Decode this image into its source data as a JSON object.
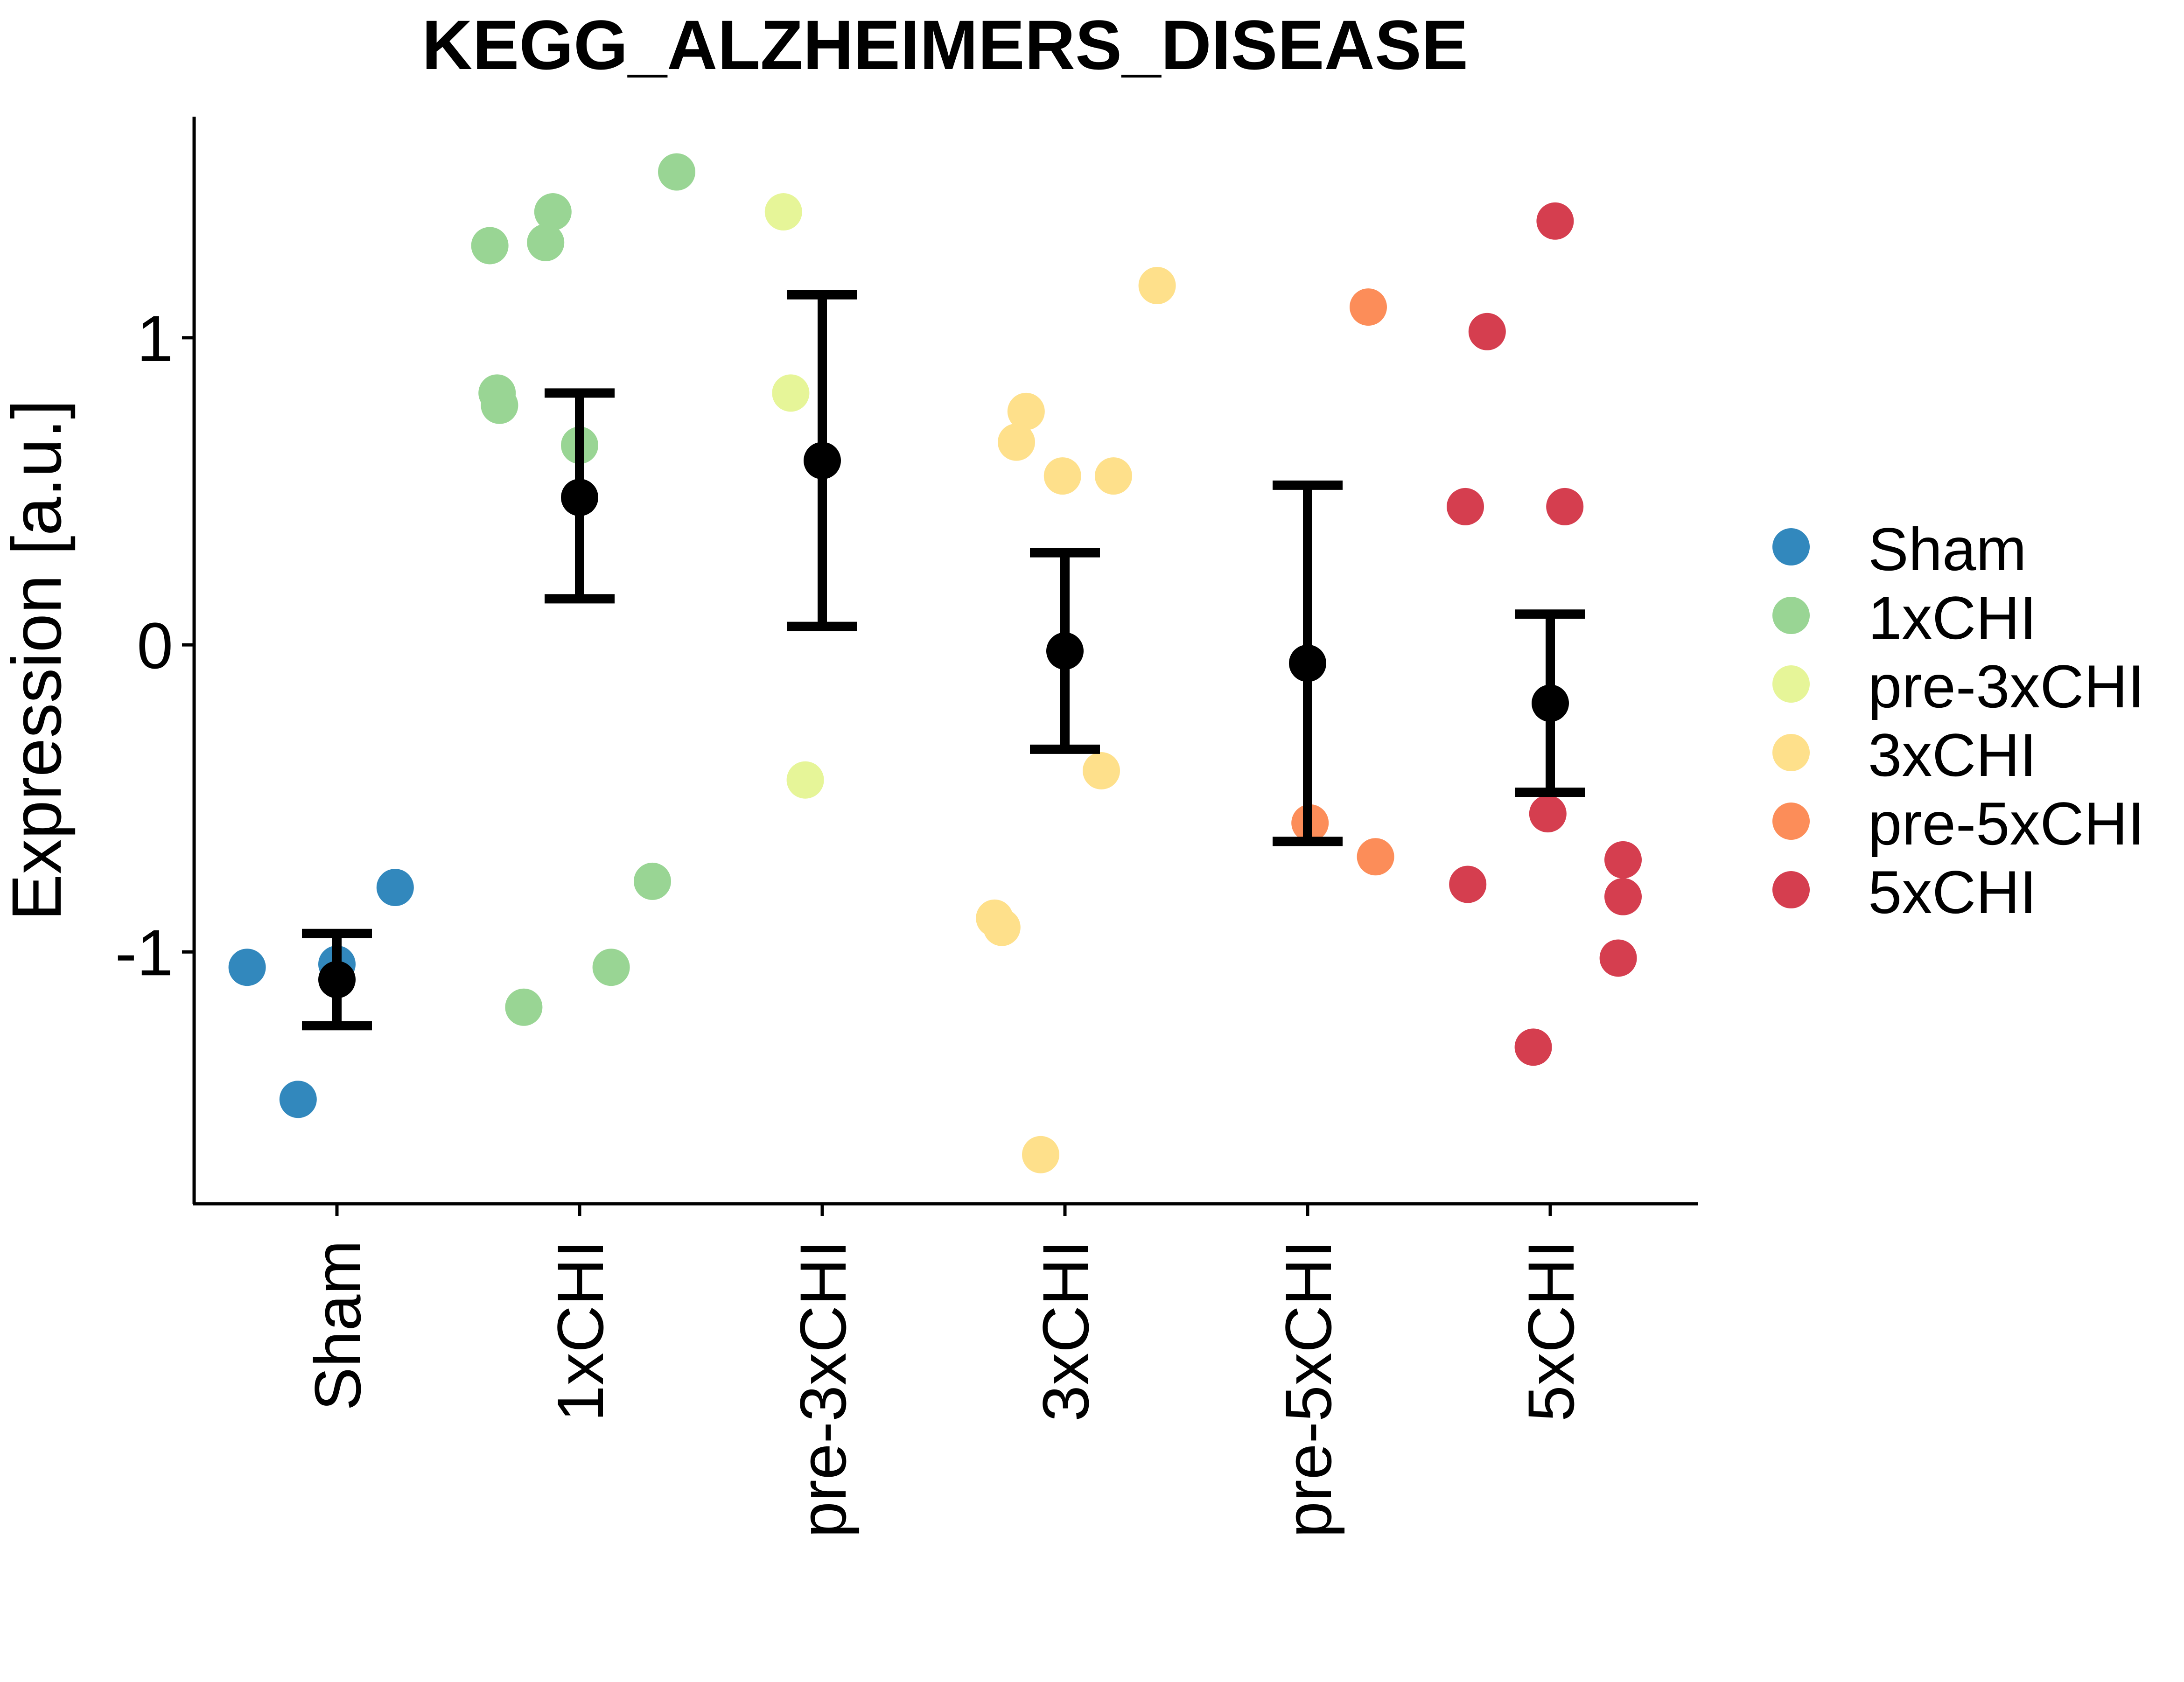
{
  "chart_data": {
    "type": "scatter",
    "title": "KEGG_ALZHEIMERS_DISEASE",
    "xlabel": "",
    "ylabel": "Expression [a.u.]",
    "ylim": [
      -1.82,
      1.72
    ],
    "yticks": [
      -1,
      0,
      1
    ],
    "ytick_labels": [
      "-1",
      "0",
      "1"
    ],
    "categories": [
      "Sham",
      "1xCHI",
      "pre-3xCHI",
      "3xCHI",
      "pre-5xCHI",
      "5xCHI"
    ],
    "grid": false,
    "legend": {
      "placement": "right",
      "entries": [
        "Sham",
        "1xCHI",
        "pre-3xCHI",
        "3xCHI",
        "pre-5xCHI",
        "5xCHI"
      ]
    },
    "colors": {
      "Sham": "#3288bd",
      "1xCHI": "#99d594",
      "pre-3xCHI": "#e6f598",
      "3xCHI": "#fee08b",
      "pre-5xCHI": "#fc8d59",
      "5xCHI": "#d53e4f",
      "summary": "#000000"
    },
    "series": [
      {
        "name": "Sham",
        "points": [
          {
            "jitter": -0.37,
            "y": -1.05
          },
          {
            "jitter": -0.16,
            "y": -1.48
          },
          {
            "jitter": 0.0,
            "y": -1.04
          },
          {
            "jitter": 0.24,
            "y": -0.79
          }
        ],
        "mean": -1.09,
        "err_low": -1.24,
        "err_high": -0.94
      },
      {
        "name": "1xCHI",
        "points": [
          {
            "jitter": -0.37,
            "y": 1.3
          },
          {
            "jitter": -0.34,
            "y": 0.82
          },
          {
            "jitter": -0.33,
            "y": 0.78
          },
          {
            "jitter": -0.14,
            "y": 1.31
          },
          {
            "jitter": -0.11,
            "y": 1.41
          },
          {
            "jitter": 0.0,
            "y": 0.65
          },
          {
            "jitter": 0.4,
            "y": 1.54
          },
          {
            "jitter": 0.3,
            "y": -0.77
          },
          {
            "jitter": 0.13,
            "y": -1.05
          },
          {
            "jitter": -0.23,
            "y": -1.18
          }
        ],
        "mean": 0.48,
        "err_low": 0.15,
        "err_high": 0.82
      },
      {
        "name": "pre-3xCHI",
        "points": [
          {
            "jitter": -0.16,
            "y": 1.41
          },
          {
            "jitter": -0.13,
            "y": 0.82
          },
          {
            "jitter": -0.07,
            "y": -0.44
          }
        ],
        "mean": 0.6,
        "err_low": 0.06,
        "err_high": 1.14
      },
      {
        "name": "3xCHI",
        "points": [
          {
            "jitter": 0.38,
            "y": 1.17
          },
          {
            "jitter": -0.16,
            "y": 0.76
          },
          {
            "jitter": -0.2,
            "y": 0.66
          },
          {
            "jitter": -0.01,
            "y": 0.55
          },
          {
            "jitter": 0.2,
            "y": 0.55
          },
          {
            "jitter": 0.15,
            "y": -0.41
          },
          {
            "jitter": -0.29,
            "y": -0.89
          },
          {
            "jitter": -0.26,
            "y": -0.92
          },
          {
            "jitter": -0.1,
            "y": -1.66
          }
        ],
        "mean": -0.02,
        "err_low": -0.34,
        "err_high": 0.3
      },
      {
        "name": "pre-5xCHI",
        "points": [
          {
            "jitter": 0.25,
            "y": 1.1
          },
          {
            "jitter": 0.01,
            "y": -0.58
          },
          {
            "jitter": 0.28,
            "y": -0.69
          }
        ],
        "mean": -0.06,
        "err_low": -0.64,
        "err_high": 0.52
      },
      {
        "name": "5xCHI",
        "points": [
          {
            "jitter": 0.02,
            "y": 1.38
          },
          {
            "jitter": -0.26,
            "y": 1.02
          },
          {
            "jitter": -0.35,
            "y": 0.45
          },
          {
            "jitter": 0.06,
            "y": 0.45
          },
          {
            "jitter": -0.01,
            "y": -0.55
          },
          {
            "jitter": -0.34,
            "y": -0.78
          },
          {
            "jitter": 0.3,
            "y": -0.7
          },
          {
            "jitter": 0.3,
            "y": -0.82
          },
          {
            "jitter": 0.28,
            "y": -1.02
          },
          {
            "jitter": -0.07,
            "y": -1.31
          }
        ],
        "mean": -0.19,
        "err_low": -0.48,
        "err_high": 0.1
      }
    ]
  }
}
